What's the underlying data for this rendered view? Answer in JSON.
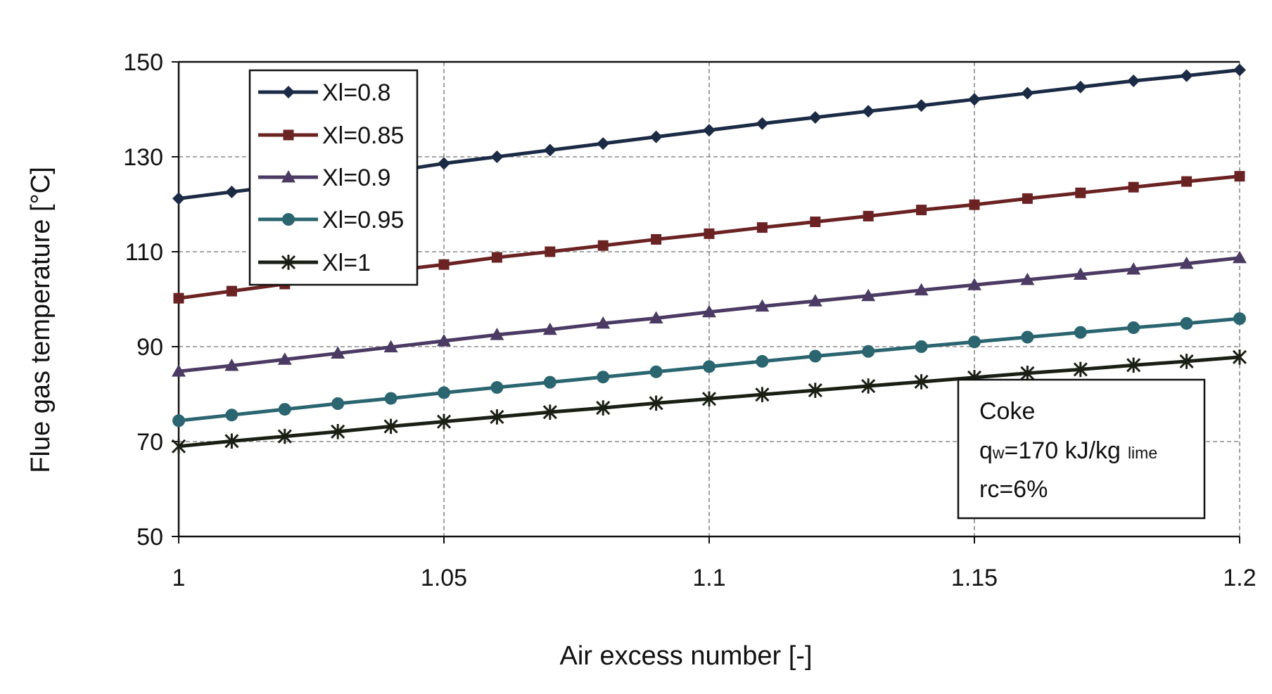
{
  "chart_data": {
    "type": "line",
    "xlabel": "Air excess number [-]",
    "ylabel": "Flue gas temperature  [°C]",
    "xlim": [
      1,
      1.2
    ],
    "ylim": [
      50,
      150
    ],
    "xticks": [
      "1",
      "1.05",
      "1.1",
      "1.15",
      "1.2"
    ],
    "yticks": [
      "50",
      "70",
      "90",
      "110",
      "130",
      "150"
    ],
    "grid": true,
    "legend_position": "top-left",
    "x": [
      1.0,
      1.01,
      1.02,
      1.03,
      1.04,
      1.05,
      1.06,
      1.07,
      1.08,
      1.09,
      1.1,
      1.11,
      1.12,
      1.13,
      1.14,
      1.15,
      1.16,
      1.17,
      1.18,
      1.19,
      1.2
    ],
    "series": [
      {
        "name": "Xl=0.8",
        "color": "#1b2a45",
        "marker": "diamond",
        "values": [
          121.2,
          122.6,
          124.0,
          125.5,
          126.9,
          128.6,
          130.0,
          131.4,
          132.8,
          134.2,
          135.6,
          137.0,
          138.3,
          139.6,
          140.8,
          142.1,
          143.4,
          144.7,
          146.0,
          147.1,
          148.3
        ]
      },
      {
        "name": "Xl=0.85",
        "color": "#6b2222",
        "marker": "square",
        "values": [
          100.2,
          101.7,
          103.2,
          104.7,
          106.0,
          107.3,
          108.8,
          110.0,
          111.3,
          112.6,
          113.8,
          115.1,
          116.3,
          117.5,
          118.8,
          119.9,
          121.2,
          122.4,
          123.6,
          124.8,
          125.9
        ]
      },
      {
        "name": "Xl=0.9",
        "color": "#4b3a63",
        "marker": "triangle",
        "values": [
          84.8,
          86.0,
          87.3,
          88.6,
          89.9,
          91.2,
          92.5,
          93.6,
          94.9,
          96.0,
          97.3,
          98.5,
          99.6,
          100.7,
          101.9,
          103.0,
          104.1,
          105.2,
          106.3,
          107.5,
          108.7
        ]
      },
      {
        "name": "Xl=0.95",
        "color": "#2a6570",
        "marker": "circle",
        "values": [
          74.4,
          75.6,
          76.8,
          78.0,
          79.1,
          80.3,
          81.4,
          82.5,
          83.6,
          84.7,
          85.8,
          86.9,
          88.0,
          89.0,
          90.0,
          91.0,
          92.0,
          93.0,
          94.0,
          94.9,
          95.9
        ]
      },
      {
        "name": "Xl=1",
        "color": "#1a1f14",
        "marker": "asterisk",
        "values": [
          69.0,
          70.1,
          71.1,
          72.1,
          73.2,
          74.2,
          75.2,
          76.2,
          77.1,
          78.1,
          79.0,
          79.9,
          80.8,
          81.7,
          82.6,
          83.5,
          84.4,
          85.2,
          86.1,
          86.9,
          87.8
        ]
      }
    ],
    "annotation": {
      "line1": "Coke",
      "line2_main": "q",
      "line2_sub": "w",
      "line2_rest": "=170 kJ/kg",
      "line2_small": "lime",
      "line3": "rc=6%"
    }
  }
}
